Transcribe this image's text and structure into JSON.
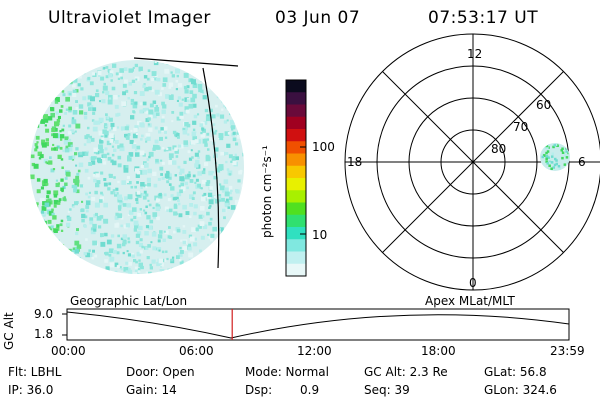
{
  "header": {
    "title": "Ultraviolet Imager",
    "date": "03 Jun 07",
    "time": "07:53:17 UT"
  },
  "colorbar": {
    "label": "photon cm⁻²s⁻¹",
    "ticks": [
      "100",
      "10"
    ],
    "colors": [
      "#0b0b1e",
      "#3a1040",
      "#6a0a3a",
      "#a00020",
      "#d01010",
      "#f05000",
      "#f89000",
      "#f8c800",
      "#e8f000",
      "#a8f000",
      "#50e020",
      "#30e070",
      "#30e0c0",
      "#80e8e0",
      "#c0f0f0",
      "#e8f8f8"
    ]
  },
  "polar": {
    "labels": {
      "top": "12",
      "right": "6",
      "bottom": "0",
      "left": "18"
    },
    "ring_labels": [
      "60",
      "70",
      "80"
    ]
  },
  "timeline": {
    "left_title": "Geographic Lat/Lon",
    "right_title": "Apex MLat/MLT",
    "ylabel": "GC Alt",
    "ymax": "9.0",
    "ymin": "1.8",
    "xticks": [
      "00:00",
      "06:00",
      "12:00",
      "18:00",
      "23:59"
    ],
    "marker_fraction": 0.329
  },
  "info": {
    "flt": "Flt: LBHL",
    "ip": "IP: 36.0",
    "door": "Door: Open",
    "gain": "Gain: 14",
    "mode": "Mode: Normal",
    "dsp_label": "Dsp:",
    "dsp_value": "0.9",
    "gcalt": "GC Alt: 2.3 Re",
    "seq": "Seq: 39",
    "glat": "GLat:  56.8",
    "glon": "GLon: 324.6"
  }
}
